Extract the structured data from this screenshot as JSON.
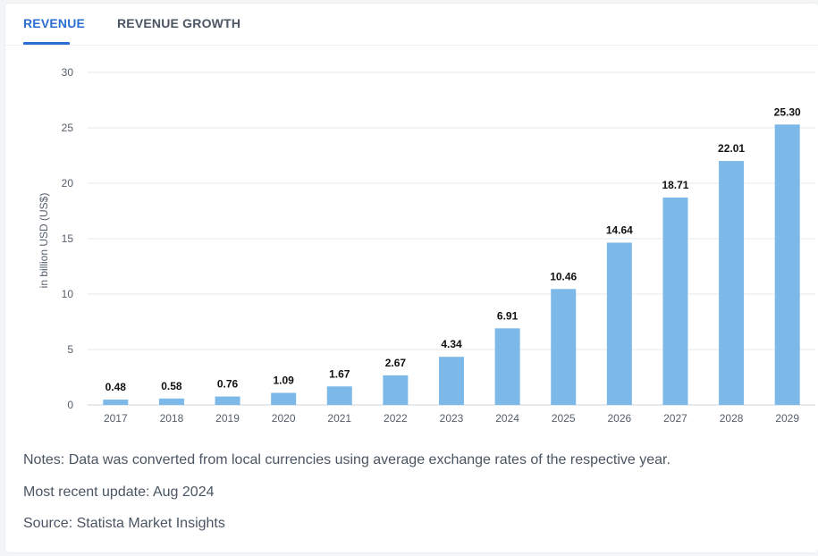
{
  "tabs": {
    "revenue_label": "REVENUE",
    "growth_label": "REVENUE GROWTH"
  },
  "colors": {
    "accent": "#2a6fd1",
    "bar": "#7cb9e8",
    "grid": "#e6e9ec"
  },
  "chart_data": {
    "type": "bar",
    "title": "",
    "xlabel": "",
    "ylabel": "in billion USD (US$)",
    "ylim": [
      0,
      30
    ],
    "yticks": [
      0,
      5,
      10,
      15,
      20,
      25,
      30
    ],
    "grid": true,
    "categories": [
      "2017",
      "2018",
      "2019",
      "2020",
      "2021",
      "2022",
      "2023",
      "2024",
      "2025",
      "2026",
      "2027",
      "2028",
      "2029"
    ],
    "values": [
      0.48,
      0.58,
      0.76,
      1.09,
      1.67,
      2.67,
      4.34,
      6.91,
      10.46,
      14.64,
      18.71,
      22.01,
      25.3
    ],
    "value_labels": [
      "0.48",
      "0.58",
      "0.76",
      "1.09",
      "1.67",
      "2.67",
      "4.34",
      "6.91",
      "10.46",
      "14.64",
      "18.71",
      "22.01",
      "25.30"
    ]
  },
  "notes": {
    "note": "Notes: Data was converted from local currencies using average exchange rates of the respective year.",
    "update": "Most recent update: Aug 2024",
    "source": "Source: Statista Market Insights"
  }
}
